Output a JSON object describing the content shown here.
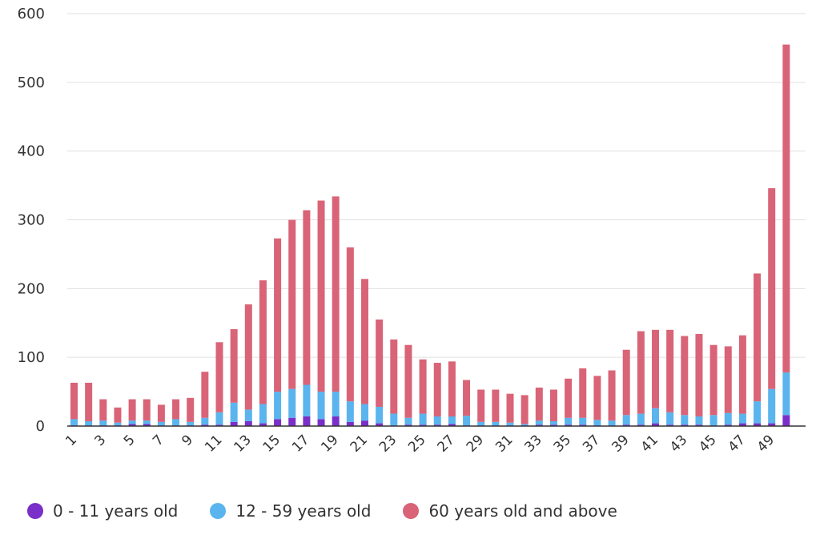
{
  "chart_data": {
    "type": "bar",
    "stacked": true,
    "categories": [
      "1",
      "2",
      "3",
      "4",
      "5",
      "6",
      "7",
      "8",
      "9",
      "10",
      "11",
      "12",
      "13",
      "14",
      "15",
      "16",
      "17",
      "18",
      "19",
      "20",
      "21",
      "22",
      "23",
      "24",
      "25",
      "26",
      "27",
      "28",
      "29",
      "30",
      "31",
      "32",
      "33",
      "34",
      "35",
      "36",
      "37",
      "38",
      "39",
      "40",
      "41",
      "42",
      "43",
      "44",
      "45",
      "46",
      "47",
      "48",
      "49",
      "50"
    ],
    "x_tick_labels": [
      "1",
      "3",
      "5",
      "7",
      "9",
      "11",
      "13",
      "15",
      "17",
      "19",
      "21",
      "23",
      "25",
      "27",
      "29",
      "31",
      "33",
      "35",
      "37",
      "39",
      "41",
      "43",
      "45",
      "47",
      "49"
    ],
    "series": [
      {
        "name": "0 - 11 years old",
        "color": "#7b2fc9",
        "values": [
          1,
          1,
          1,
          1,
          3,
          3,
          1,
          1,
          1,
          2,
          2,
          6,
          7,
          4,
          10,
          12,
          14,
          10,
          14,
          6,
          8,
          4,
          1,
          2,
          2,
          2,
          3,
          1,
          1,
          1,
          1,
          1,
          2,
          2,
          2,
          2,
          1,
          1,
          2,
          2,
          4,
          2,
          2,
          2,
          1,
          2,
          4,
          4,
          4,
          16
        ]
      },
      {
        "name": "12 - 59 years old",
        "color": "#5ab4ee",
        "values": [
          9,
          6,
          7,
          4,
          5,
          5,
          5,
          9,
          5,
          10,
          18,
          28,
          17,
          28,
          40,
          42,
          46,
          40,
          36,
          30,
          24,
          24,
          17,
          10,
          16,
          12,
          11,
          14,
          5,
          5,
          4,
          2,
          6,
          5,
          10,
          10,
          8,
          7,
          14,
          16,
          22,
          18,
          14,
          12,
          15,
          17,
          14,
          32,
          50,
          62
        ]
      },
      {
        "name": "60 years old and above",
        "color": "#d96477",
        "values": [
          53,
          56,
          31,
          22,
          31,
          31,
          25,
          29,
          35,
          67,
          102,
          107,
          153,
          180,
          223,
          246,
          254,
          278,
          284,
          224,
          182,
          127,
          108,
          106,
          79,
          78,
          80,
          52,
          47,
          47,
          42,
          42,
          48,
          46,
          57,
          72,
          64,
          73,
          95,
          120,
          114,
          120,
          115,
          120,
          102,
          97,
          114,
          186,
          292,
          477
        ]
      }
    ],
    "ylim": [
      0,
      600
    ],
    "yticks": [
      0,
      100,
      200,
      300,
      400,
      500,
      600
    ],
    "grid": true,
    "legend_position": "bottom-left",
    "title": "",
    "xlabel": "",
    "ylabel": ""
  }
}
